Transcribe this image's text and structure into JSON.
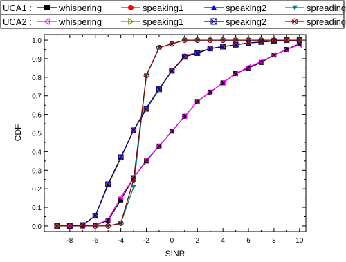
{
  "chart_data": {
    "type": "line",
    "xlabel": "SINR",
    "ylabel": "CDF",
    "xlim": [
      -10,
      10.5
    ],
    "ylim": [
      -0.03,
      1.03
    ],
    "xticks": [
      -8,
      -6,
      -4,
      -2,
      0,
      2,
      4,
      6,
      8,
      10
    ],
    "yticks": [
      0.0,
      0.1,
      0.2,
      0.3,
      0.4,
      0.5,
      0.6,
      0.7,
      0.8,
      0.9,
      1.0
    ],
    "grid": false,
    "legend_position": "top",
    "legend_groups": [
      "UCA1 :",
      "UCA2 :"
    ],
    "x": [
      -9,
      -8,
      -7,
      -6,
      -5,
      -4,
      -3,
      -2,
      -1,
      0,
      1,
      2,
      3,
      4,
      5,
      6,
      7,
      8,
      9,
      10
    ],
    "series": [
      {
        "group": "UCA1 :",
        "name": "whispering",
        "color": "#000000",
        "marker": "square",
        "values": [
          0.0,
          0.0,
          0.0,
          0.005,
          0.03,
          0.14,
          0.26,
          0.35,
          0.43,
          0.51,
          0.59,
          0.67,
          0.72,
          0.77,
          0.82,
          0.85,
          0.88,
          0.92,
          0.95,
          0.98
        ]
      },
      {
        "group": "UCA1 :",
        "name": "speaking1",
        "color": "#ff0000",
        "marker": "circle",
        "values": [
          0.0,
          0.0,
          0.005,
          0.055,
          0.22,
          0.365,
          0.515,
          0.63,
          0.74,
          0.835,
          0.915,
          0.935,
          0.955,
          0.965,
          0.975,
          0.985,
          0.99,
          0.995,
          1.0,
          1.0
        ]
      },
      {
        "group": "UCA1 :",
        "name": "speaking2",
        "color": "#0000ff",
        "marker": "triangle-up",
        "values": [
          0.0,
          0.0,
          0.005,
          0.055,
          0.225,
          0.37,
          0.515,
          0.635,
          0.74,
          0.835,
          0.91,
          0.93,
          0.955,
          0.965,
          0.975,
          0.985,
          0.99,
          0.995,
          1.0,
          1.0
        ]
      },
      {
        "group": "UCA1 :",
        "name": "spreading",
        "color": "#008080",
        "marker": "triangle-down",
        "values": [
          0.0,
          0.0,
          0.0,
          0.0,
          0.0,
          0.015,
          0.21,
          0.81,
          0.96,
          0.98,
          1.0,
          1.0,
          1.0,
          1.0,
          1.0,
          1.0,
          1.0,
          1.0,
          1.0,
          1.0
        ]
      },
      {
        "group": "UCA2 :",
        "name": "whispering",
        "color": "#ff00ff",
        "marker": "triangle-left",
        "values": [
          0.0,
          0.0,
          0.0,
          0.005,
          0.035,
          0.155,
          0.26,
          0.355,
          0.43,
          0.51,
          0.59,
          0.67,
          0.72,
          0.77,
          0.82,
          0.855,
          0.885,
          0.92,
          0.95,
          0.975
        ]
      },
      {
        "group": "UCA2 :",
        "name": "speaking1",
        "color": "#808000",
        "marker": "triangle-right",
        "values": [
          0.0,
          0.0,
          0.005,
          0.055,
          0.22,
          0.365,
          0.515,
          0.63,
          0.74,
          0.835,
          0.91,
          0.935,
          0.955,
          0.965,
          0.975,
          0.985,
          0.99,
          0.995,
          1.0,
          1.0
        ]
      },
      {
        "group": "UCA2 :",
        "name": "speaking2",
        "color": "#000080",
        "marker": "x-square",
        "values": [
          0.0,
          0.0,
          0.005,
          0.055,
          0.225,
          0.37,
          0.515,
          0.63,
          0.735,
          0.835,
          0.91,
          0.93,
          0.955,
          0.965,
          0.975,
          0.985,
          0.99,
          0.995,
          1.0,
          1.0
        ]
      },
      {
        "group": "UCA2 :",
        "name": "spreading",
        "color": "#800000",
        "marker": "x-circle",
        "values": [
          0.0,
          0.0,
          0.0,
          0.0,
          0.0,
          0.015,
          0.25,
          0.81,
          0.96,
          0.98,
          1.0,
          1.0,
          1.0,
          1.0,
          1.0,
          1.0,
          1.0,
          1.0,
          1.0,
          1.0
        ]
      }
    ]
  }
}
